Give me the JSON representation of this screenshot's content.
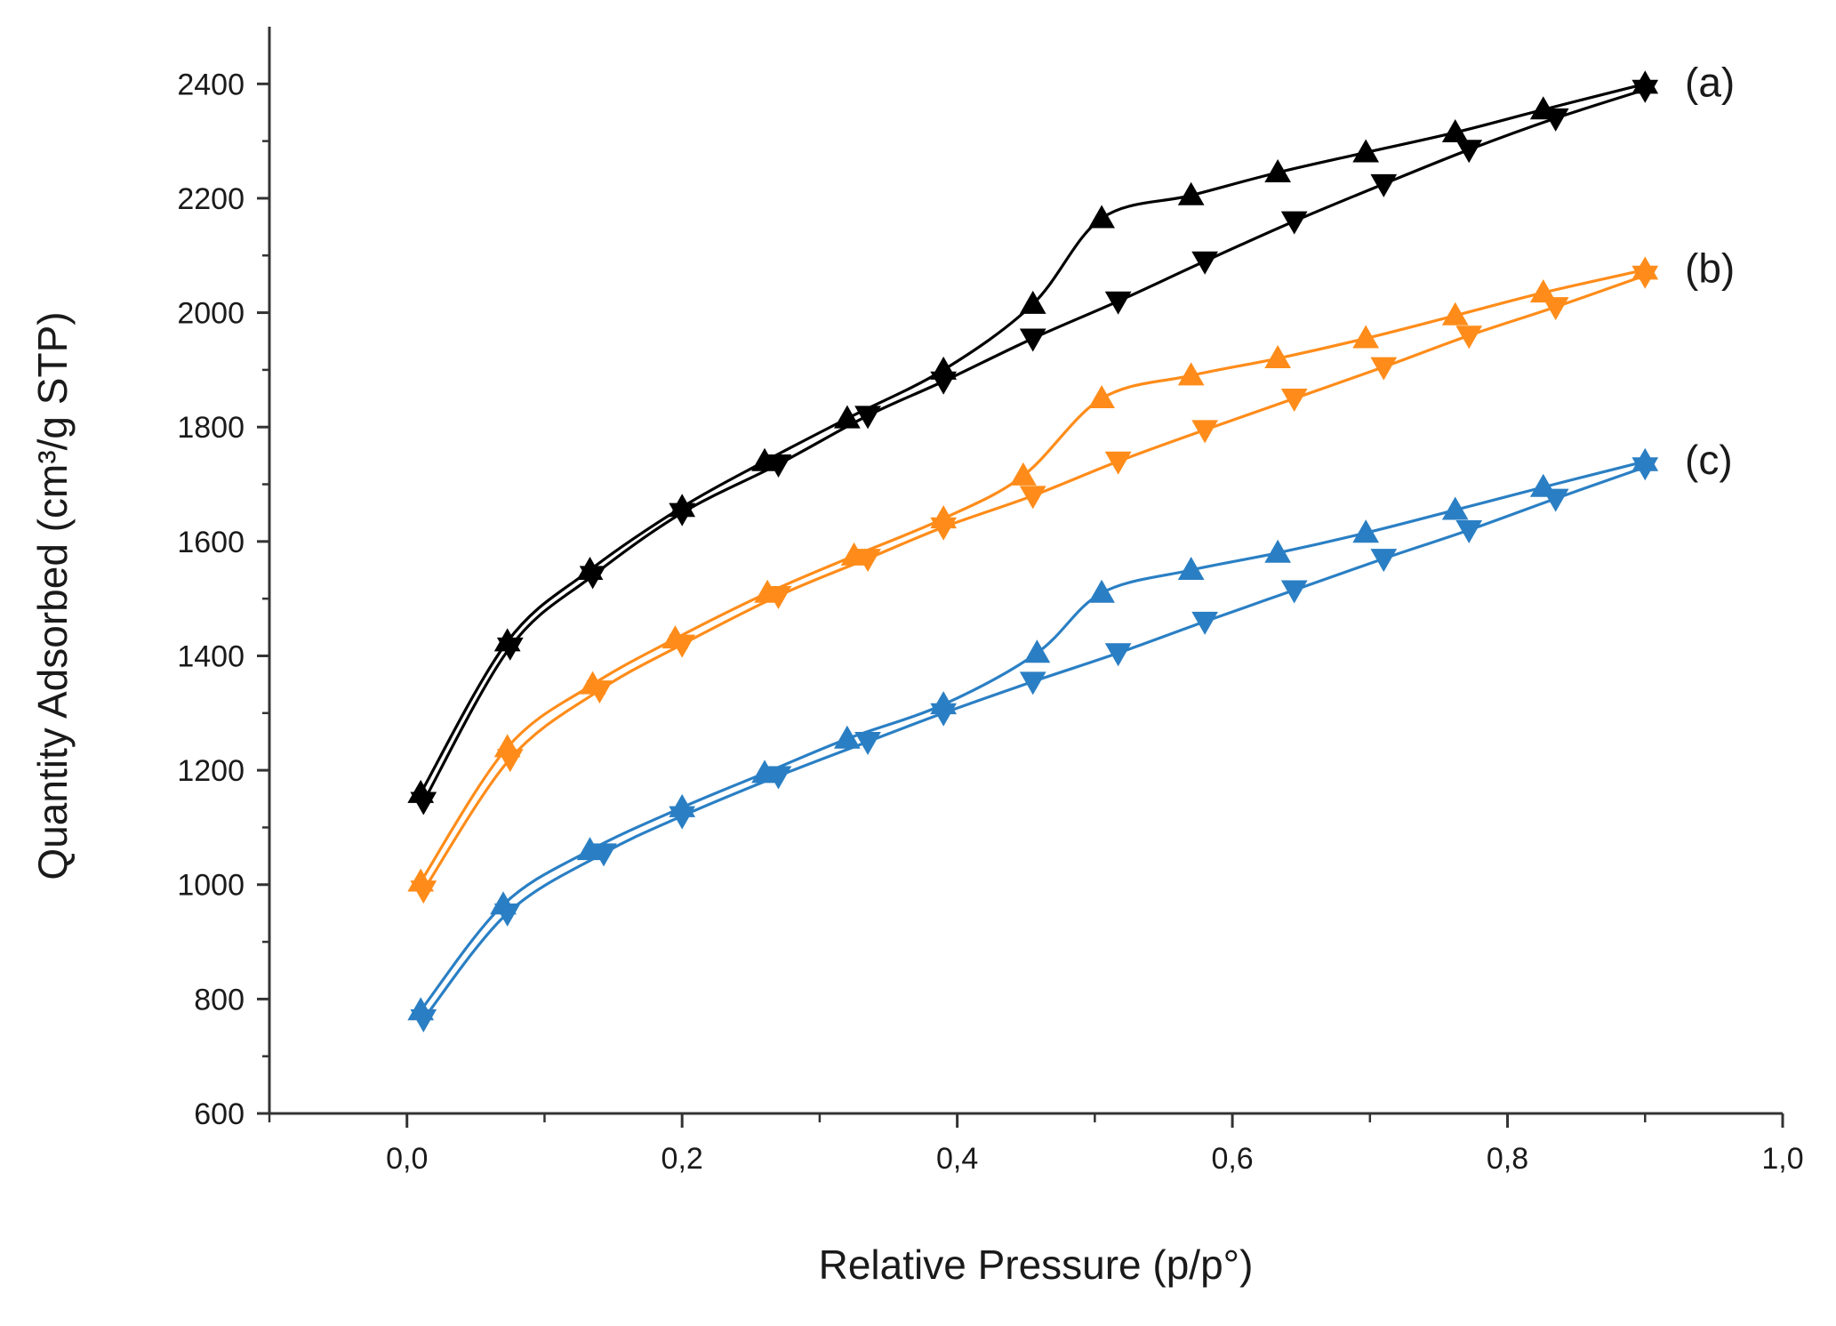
{
  "chart_data": {
    "type": "line",
    "title": "",
    "xlabel": "Relative Pressure (p/p°)",
    "ylabel": "Quantity Adsorbed (cm³/g STP)",
    "xlim": [
      -0.1,
      1.0
    ],
    "ylim": [
      600,
      2500
    ],
    "xticks": [
      0.0,
      0.2,
      0.4,
      0.6,
      0.8,
      1.0
    ],
    "xtick_labels": [
      "0,0",
      "0,2",
      "0,4",
      "0,6",
      "0,8",
      "1,0"
    ],
    "yticks": [
      600,
      800,
      1000,
      1200,
      1400,
      1600,
      1800,
      2000,
      2200,
      2400
    ],
    "ytick_labels": [
      "600",
      "800",
      "1000",
      "1200",
      "1400",
      "1600",
      "1800",
      "2000",
      "2200",
      "2400"
    ],
    "grid": false,
    "series": [
      {
        "name": "(a)",
        "color": "#000000",
        "adsorption": {
          "marker": "triangle-up",
          "x": [
            0.01,
            0.073,
            0.133,
            0.2,
            0.26,
            0.32,
            0.39,
            0.455,
            0.505,
            0.57,
            0.633,
            0.697,
            0.762,
            0.826,
            0.9
          ],
          "y": [
            1160,
            1425,
            1550,
            1660,
            1740,
            1815,
            1900,
            2015,
            2165,
            2205,
            2245,
            2280,
            2315,
            2355,
            2400
          ]
        },
        "desorption": {
          "marker": "triangle-down",
          "x": [
            0.9,
            0.835,
            0.772,
            0.71,
            0.645,
            0.58,
            0.517,
            0.455,
            0.39,
            0.335,
            0.27,
            0.2,
            0.135,
            0.075,
            0.012
          ],
          "y": [
            2390,
            2340,
            2285,
            2225,
            2160,
            2090,
            2020,
            1955,
            1880,
            1820,
            1735,
            1650,
            1540,
            1415,
            1145
          ]
        }
      },
      {
        "name": "(b)",
        "color": "#ff8c1a",
        "adsorption": {
          "marker": "triangle-up",
          "x": [
            0.01,
            0.073,
            0.135,
            0.195,
            0.262,
            0.325,
            0.39,
            0.448,
            0.505,
            0.57,
            0.633,
            0.697,
            0.762,
            0.826,
            0.9
          ],
          "y": [
            1005,
            1240,
            1350,
            1430,
            1510,
            1575,
            1640,
            1715,
            1850,
            1890,
            1920,
            1955,
            1995,
            2035,
            2075
          ]
        },
        "desorption": {
          "marker": "triangle-down",
          "x": [
            0.9,
            0.835,
            0.772,
            0.71,
            0.645,
            0.58,
            0.517,
            0.455,
            0.39,
            0.335,
            0.27,
            0.2,
            0.14,
            0.075,
            0.012
          ],
          "y": [
            2065,
            2010,
            1960,
            1905,
            1850,
            1795,
            1740,
            1680,
            1625,
            1570,
            1505,
            1420,
            1340,
            1220,
            990
          ]
        }
      },
      {
        "name": "(c)",
        "color": "#2a7fc4",
        "adsorption": {
          "marker": "triangle-up",
          "x": [
            0.01,
            0.07,
            0.133,
            0.2,
            0.26,
            0.32,
            0.39,
            0.458,
            0.505,
            0.57,
            0.633,
            0.697,
            0.762,
            0.826,
            0.9
          ],
          "y": [
            780,
            965,
            1060,
            1135,
            1195,
            1255,
            1315,
            1405,
            1510,
            1550,
            1580,
            1615,
            1655,
            1695,
            1740
          ]
        },
        "desorption": {
          "marker": "triangle-down",
          "x": [
            0.9,
            0.835,
            0.772,
            0.71,
            0.645,
            0.58,
            0.517,
            0.455,
            0.39,
            0.335,
            0.27,
            0.2,
            0.143,
            0.073,
            0.012
          ],
          "y": [
            1730,
            1675,
            1620,
            1570,
            1515,
            1460,
            1405,
            1355,
            1300,
            1250,
            1190,
            1120,
            1055,
            950,
            765
          ]
        }
      }
    ]
  }
}
